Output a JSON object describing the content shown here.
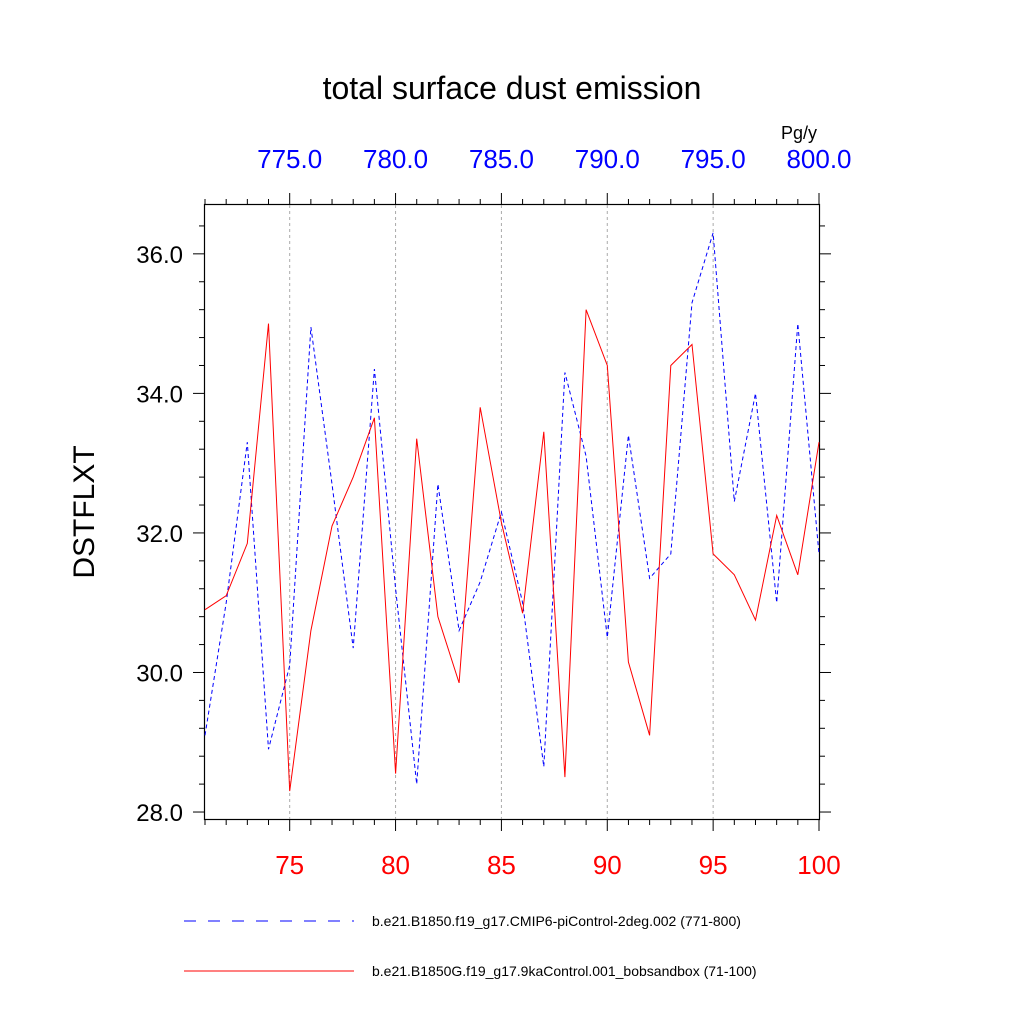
{
  "chart_data": {
    "type": "line",
    "title": "total surface dust emission",
    "ylabel": "DSTFLXT",
    "units_label": "Pg/y",
    "ylim": [
      27.9,
      36.7
    ],
    "y_ticks": [
      28.0,
      30.0,
      32.0,
      34.0,
      36.0
    ],
    "y_tick_labels": [
      "28.0",
      "30.0",
      "32.0",
      "34.0",
      "36.0"
    ],
    "x_bottom": {
      "range": [
        71,
        100
      ],
      "ticks": [
        75,
        80,
        85,
        90,
        95,
        100
      ],
      "tick_labels": [
        "75",
        "80",
        "85",
        "90",
        "95",
        "100"
      ],
      "color": "#ff0000"
    },
    "x_top": {
      "range": [
        771,
        800
      ],
      "ticks": [
        775,
        780,
        785,
        790,
        795,
        800
      ],
      "tick_labels": [
        "775.0",
        "780.0",
        "785.0",
        "790.0",
        "795.0",
        "800.0"
      ],
      "color": "#0000ff"
    },
    "grid_x": true,
    "legend_position": "bottom",
    "series": [
      {
        "name": "b.e21.B1850.f19_g17.CMIP6-piControl-2deg.002 (771-800)",
        "axis": "top",
        "color": "#0000ff",
        "style": "dashed",
        "x": [
          771,
          772,
          773,
          774,
          775,
          776,
          777,
          778,
          779,
          780,
          781,
          782,
          783,
          784,
          785,
          786,
          787,
          788,
          789,
          790,
          791,
          792,
          793,
          794,
          795,
          796,
          797,
          798,
          799,
          800
        ],
        "values": [
          29.1,
          31.0,
          33.3,
          28.9,
          30.1,
          34.95,
          32.7,
          30.35,
          34.35,
          31.2,
          28.4,
          32.7,
          30.6,
          31.3,
          32.3,
          31.0,
          28.65,
          34.3,
          33.1,
          30.5,
          33.4,
          31.35,
          31.7,
          35.3,
          36.3,
          32.45,
          34.0,
          31.0,
          35.0,
          31.7
        ]
      },
      {
        "name": "b.e21.B1850G.f19_g17.9kaControl.001_bobsandbox (71-100)",
        "axis": "bottom",
        "color": "#ff0000",
        "style": "solid",
        "x": [
          71,
          72,
          73,
          74,
          75,
          76,
          77,
          78,
          79,
          80,
          81,
          82,
          83,
          84,
          85,
          86,
          87,
          88,
          89,
          90,
          91,
          92,
          93,
          94,
          95,
          96,
          97,
          98,
          99,
          100
        ],
        "values": [
          30.9,
          31.1,
          31.85,
          35.0,
          28.3,
          30.6,
          32.1,
          32.8,
          33.65,
          28.55,
          33.35,
          30.8,
          29.85,
          33.8,
          32.15,
          30.85,
          33.45,
          28.5,
          35.2,
          34.4,
          30.15,
          29.1,
          34.4,
          34.7,
          31.7,
          31.4,
          30.75,
          32.25,
          31.4,
          33.3
        ]
      }
    ]
  }
}
